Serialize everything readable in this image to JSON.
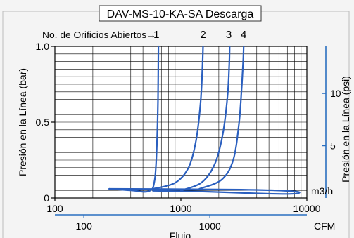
{
  "chart_data": {
    "type": "line",
    "title": "DAV-MS-10-KA-SA Descarga",
    "annotation_label": "No. de Orificios Abiertos→",
    "xscale": "log",
    "xlim": [
      100,
      10000
    ],
    "ylim": [
      0,
      1.0
    ],
    "xlabel_partial": "Flujo",
    "ylabel": "Presión en la Línea (bar)",
    "ylabel_right": "Presión en la Línea (psi)",
    "unit_top": "m3/h",
    "unit_bottom": "CFM",
    "x_ticks": [
      {
        "value": 100,
        "label": "100"
      },
      {
        "value": 1000,
        "label": "1000"
      },
      {
        "value": 10000,
        "label": "10000"
      }
    ],
    "y_ticks": [
      {
        "value": 0,
        "label": "0"
      },
      {
        "value": 0.5,
        "label": "0.5"
      },
      {
        "value": 1.0,
        "label": "1.0"
      }
    ],
    "psi_ticks": [
      {
        "value": 5,
        "label": "5"
      },
      {
        "value": 10,
        "label": "10"
      }
    ],
    "cfm_ticks": [
      {
        "value": 100,
        "label": "100"
      },
      {
        "value": 1000,
        "label": "1000"
      }
    ],
    "grid": true,
    "series": [
      {
        "name": "1",
        "x": [
          270,
          400,
          560,
          620,
          645,
          658,
          663
        ],
        "y": [
          0.06,
          0.05,
          0.045,
          0.12,
          0.35,
          0.65,
          1.0
        ]
      },
      {
        "name": "2",
        "x": [
          600,
          900,
          1150,
          1320,
          1430,
          1480,
          1500
        ],
        "y": [
          0.06,
          0.1,
          0.2,
          0.38,
          0.62,
          0.85,
          1.0
        ]
      },
      {
        "name": "3",
        "x": [
          1000,
          1450,
          1850,
          2150,
          2350,
          2420,
          2440
        ],
        "y": [
          0.05,
          0.1,
          0.22,
          0.42,
          0.68,
          0.88,
          1.0
        ]
      },
      {
        "name": "4",
        "x": [
          1400,
          2100,
          2600,
          2900,
          3050,
          3120,
          3150
        ],
        "y": [
          0.06,
          0.12,
          0.25,
          0.5,
          0.75,
          0.9,
          1.0
        ]
      },
      {
        "name": "",
        "x": [
          270,
          1000,
          3000,
          6500,
          8700,
          7500,
          4000,
          1500,
          600
        ],
        "y": [
          0.06,
          0.058,
          0.055,
          0.048,
          0.038,
          0.027,
          0.03,
          0.042,
          0.047
        ]
      }
    ],
    "line_color": "#2a5fbf",
    "axis_accent_color": "#2a6fc0",
    "series_label_x": [
      640,
      1500,
      2400,
      3150
    ]
  }
}
